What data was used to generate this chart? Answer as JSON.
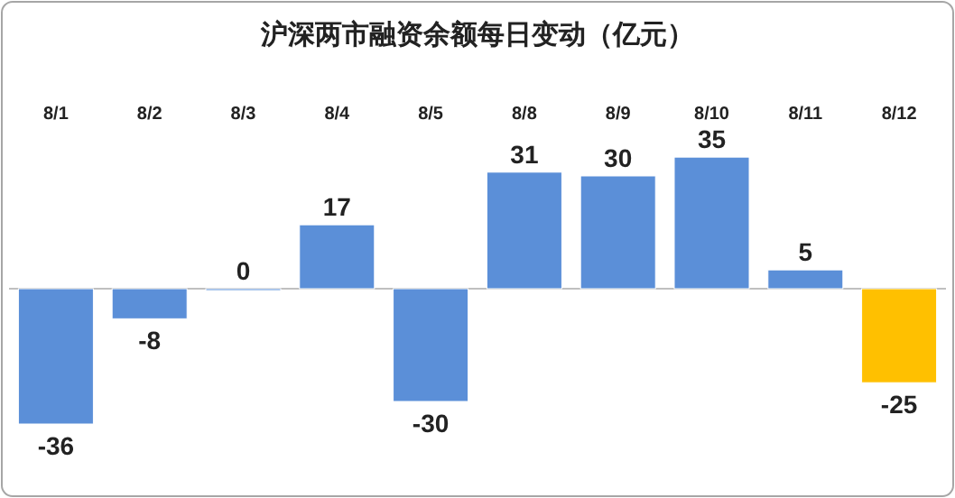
{
  "chart_data": {
    "type": "bar",
    "title": "沪深两市融资余额每日变动（亿元）",
    "categories": [
      "8/1",
      "8/2",
      "8/3",
      "8/4",
      "8/5",
      "8/8",
      "8/9",
      "8/10",
      "8/11",
      "8/12"
    ],
    "values": [
      -36,
      -8,
      0,
      17,
      -30,
      31,
      30,
      35,
      5,
      -25
    ],
    "colors": [
      "#5b8fd8",
      "#5b8fd8",
      "#5b8fd8",
      "#5b8fd8",
      "#5b8fd8",
      "#5b8fd8",
      "#5b8fd8",
      "#5b8fd8",
      "#5b8fd8",
      "#ffc000"
    ],
    "data_labels": true
  }
}
